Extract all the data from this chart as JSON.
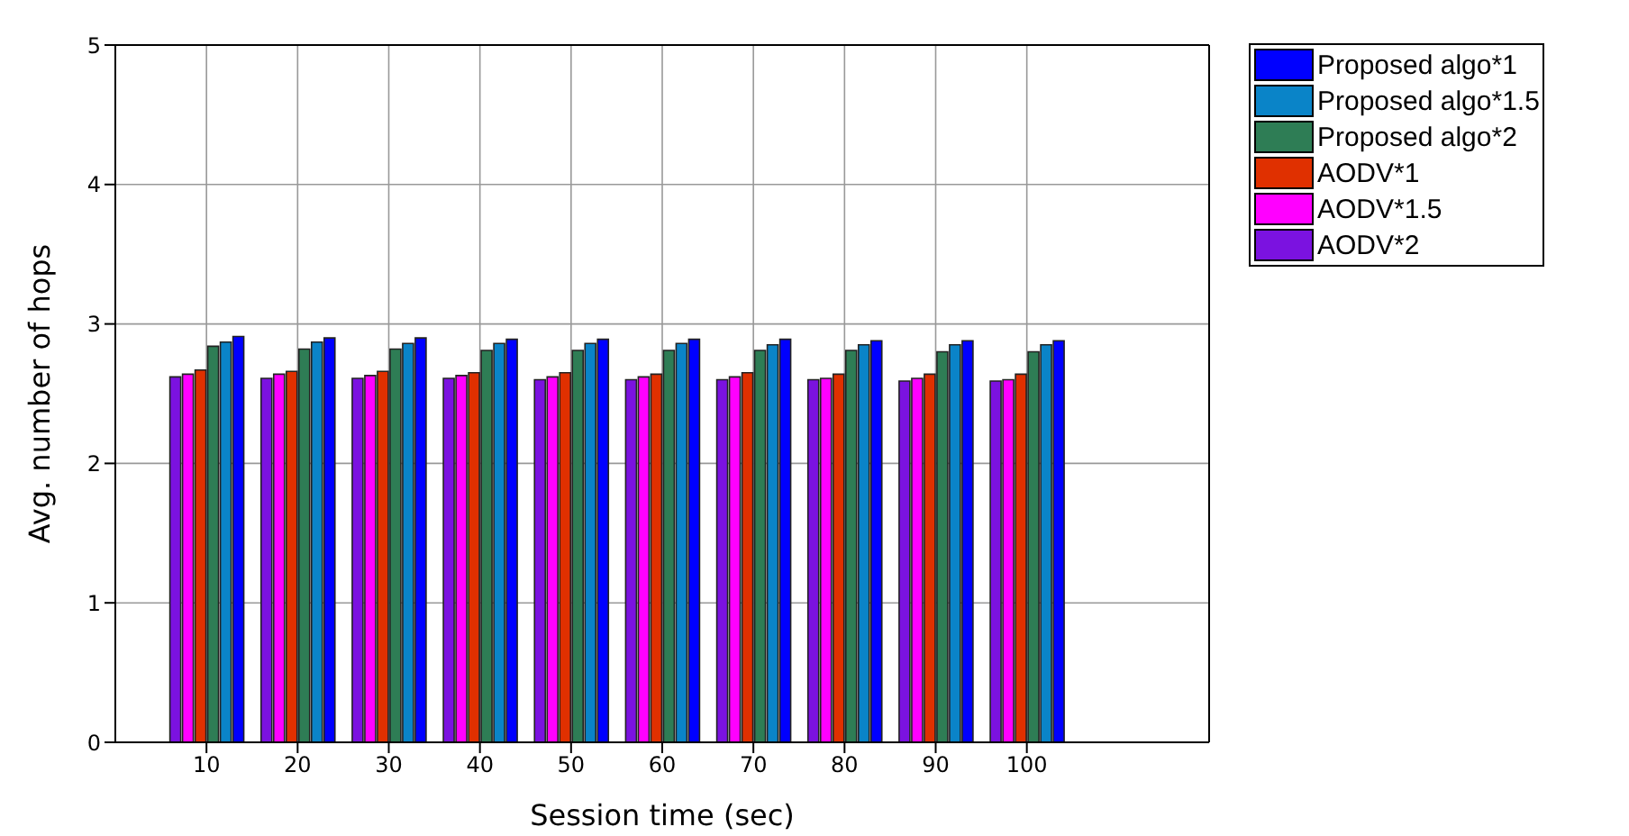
{
  "chart_data": {
    "type": "bar",
    "xlabel": "Session time (sec)",
    "ylabel": "Avg. number of hops",
    "x": [
      10,
      20,
      30,
      40,
      50,
      60,
      70,
      80,
      90,
      100
    ],
    "xlim": [
      0,
      120
    ],
    "xticks": [
      10,
      20,
      30,
      40,
      50,
      60,
      70,
      80,
      90,
      100
    ],
    "ylim": [
      0,
      5
    ],
    "yticks": [
      0,
      1,
      2,
      3,
      4,
      5
    ],
    "grid": true,
    "legend": "top right",
    "series": [
      {
        "name": "Proposed algo*1",
        "color": "#0000ff",
        "values": [
          2.91,
          2.9,
          2.9,
          2.89,
          2.89,
          2.89,
          2.89,
          2.88,
          2.88,
          2.88
        ]
      },
      {
        "name": "Proposed algo*1.5",
        "color": "#0a84c8",
        "values": [
          2.87,
          2.87,
          2.86,
          2.86,
          2.86,
          2.86,
          2.85,
          2.85,
          2.85,
          2.85
        ]
      },
      {
        "name": "Proposed algo*2",
        "color": "#2e7d55",
        "values": [
          2.84,
          2.82,
          2.82,
          2.81,
          2.81,
          2.81,
          2.81,
          2.81,
          2.8,
          2.8
        ]
      },
      {
        "name": "AODV*1",
        "color": "#e03000",
        "values": [
          2.67,
          2.66,
          2.66,
          2.65,
          2.65,
          2.64,
          2.65,
          2.64,
          2.64,
          2.64
        ]
      },
      {
        "name": "AODV*1.5",
        "color": "#ff00ff",
        "values": [
          2.64,
          2.64,
          2.63,
          2.63,
          2.62,
          2.62,
          2.62,
          2.61,
          2.61,
          2.6
        ]
      },
      {
        "name": "AODV*2",
        "color": "#7b12e0",
        "values": [
          2.62,
          2.61,
          2.61,
          2.61,
          2.6,
          2.6,
          2.6,
          2.6,
          2.59,
          2.59
        ]
      }
    ]
  }
}
